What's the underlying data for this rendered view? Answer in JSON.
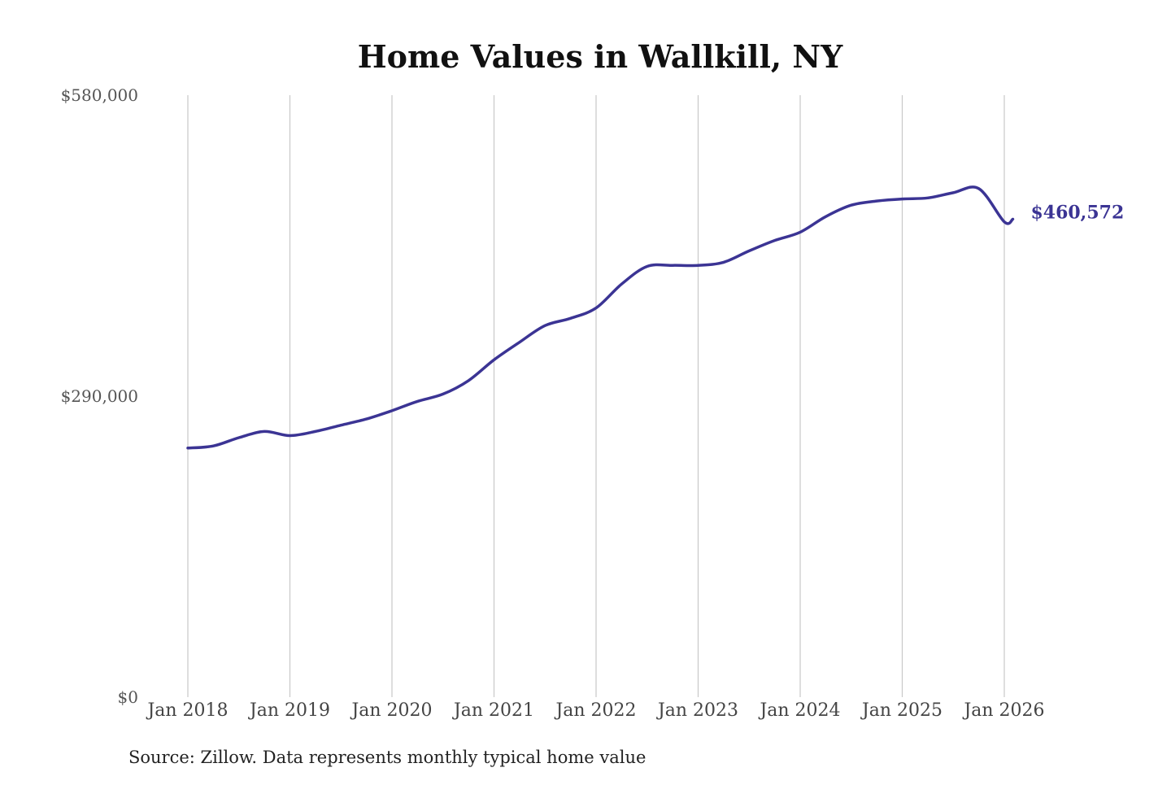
{
  "chart_data": {
    "type": "line",
    "title": "Home Values in Wallkill, NY",
    "source": "Source: Zillow. Data represents monthly typical home value",
    "xlabel": "",
    "ylabel": "",
    "ylim": [
      0,
      580000
    ],
    "yticks": [
      {
        "value": 0,
        "label": "$0"
      },
      {
        "value": 290000,
        "label": "$290,000"
      },
      {
        "value": 580000,
        "label": "$580,000"
      }
    ],
    "xlim": [
      "2018-01",
      "2026-02"
    ],
    "xticks": [
      {
        "date": "2018-01",
        "label": "Jan 2018"
      },
      {
        "date": "2019-01",
        "label": "Jan 2019"
      },
      {
        "date": "2020-01",
        "label": "Jan 2020"
      },
      {
        "date": "2021-01",
        "label": "Jan 2021"
      },
      {
        "date": "2022-01",
        "label": "Jan 2022"
      },
      {
        "date": "2023-01",
        "label": "Jan 2023"
      },
      {
        "date": "2024-01",
        "label": "Jan 2024"
      },
      {
        "date": "2025-01",
        "label": "Jan 2025"
      },
      {
        "date": "2026-01",
        "label": "Jan 2026"
      }
    ],
    "grid": {
      "vertical": true,
      "horizontal": false
    },
    "legend": "none",
    "colors": {
      "line": "#3b3494",
      "end_label": "#3b3494",
      "grid": "#c8c8c8"
    },
    "end_label": "$460,572",
    "series": [
      {
        "x": [
          "2018-01",
          "2018-04",
          "2018-07",
          "2018-10",
          "2019-01",
          "2019-04",
          "2019-07",
          "2019-10",
          "2020-01",
          "2020-04",
          "2020-07",
          "2020-10",
          "2021-01",
          "2021-04",
          "2021-07",
          "2021-10",
          "2022-01",
          "2022-04",
          "2022-07",
          "2022-10",
          "2023-01",
          "2023-04",
          "2023-07",
          "2023-10",
          "2024-01",
          "2024-04",
          "2024-07",
          "2024-10",
          "2025-01",
          "2025-04",
          "2025-07",
          "2025-10",
          "2026-01",
          "2026-02"
        ],
        "values": [
          240000,
          242000,
          250000,
          256000,
          252000,
          256000,
          262000,
          268000,
          276000,
          285000,
          292000,
          305000,
          325000,
          342000,
          358000,
          365000,
          375000,
          398000,
          415000,
          416000,
          416000,
          419000,
          430000,
          440000,
          448000,
          463000,
          474000,
          478000,
          480000,
          481000,
          486000,
          490000,
          458000,
          460572
        ]
      }
    ]
  }
}
